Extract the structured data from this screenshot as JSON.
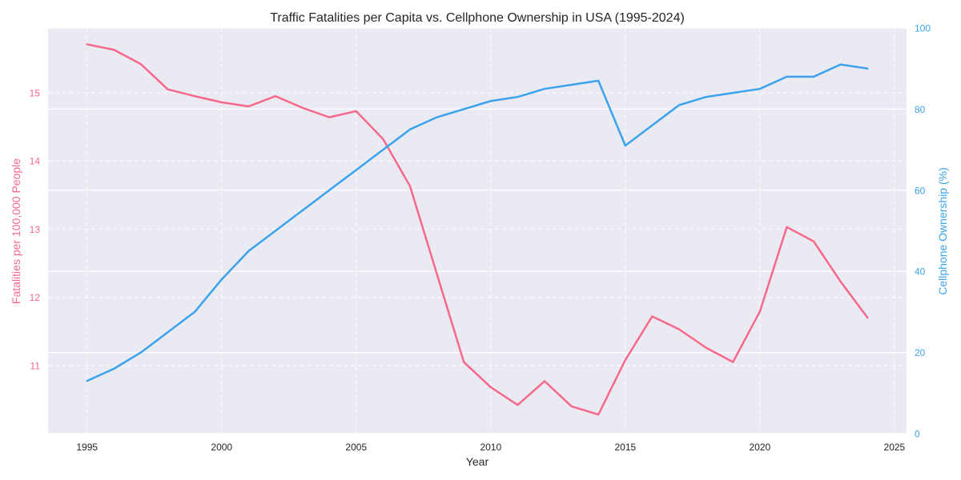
{
  "chart_data": {
    "type": "line",
    "title": "Traffic Fatalities per Capita vs. Cellphone Ownership in USA (1995-2024)",
    "xlabel": "Year",
    "ylabel_left": "Fatalities per 100,000 People",
    "ylabel_right": "Cellphone Ownership (%)",
    "x": [
      1995,
      1996,
      1997,
      1998,
      1999,
      2000,
      2001,
      2002,
      2003,
      2004,
      2005,
      2006,
      2007,
      2008,
      2009,
      2010,
      2011,
      2012,
      2013,
      2014,
      2015,
      2016,
      2017,
      2018,
      2019,
      2020,
      2021,
      2022,
      2023,
      2024
    ],
    "series": [
      {
        "axis": "left",
        "color": "#f7688a",
        "values": [
          15.71,
          15.63,
          15.42,
          15.05,
          14.95,
          14.86,
          14.8,
          14.95,
          14.78,
          14.64,
          14.73,
          14.32,
          13.63,
          12.34,
          11.05,
          10.68,
          10.42,
          10.77,
          10.4,
          10.28,
          11.08,
          11.72,
          11.53,
          11.26,
          11.05,
          11.79,
          13.03,
          12.82,
          12.23,
          11.7
        ]
      },
      {
        "axis": "right",
        "color": "#3ba3ec",
        "values": [
          13,
          16,
          20,
          25,
          30,
          38,
          45,
          50,
          55,
          60,
          65,
          70,
          75,
          78,
          80,
          82,
          83,
          85,
          86,
          87,
          71,
          76,
          81,
          83,
          84,
          85,
          88,
          88,
          91,
          90
        ]
      }
    ],
    "xlim": [
      1993.55,
      2025.45
    ],
    "ylim_left": [
      10.0,
      15.95
    ],
    "ylim_right": [
      0,
      100
    ],
    "x_ticks": [
      1995,
      2000,
      2005,
      2010,
      2015,
      2020,
      2025
    ],
    "y_ticks_left": [
      11,
      12,
      13,
      14,
      15
    ],
    "y_ticks_right": [
      0,
      20,
      40,
      60,
      80,
      100
    ],
    "grid": true,
    "colors": {
      "plot_bg": "#eaeaf2",
      "left_axis": "#f7688a",
      "right_axis": "#3ba3ec",
      "text": "#262626"
    }
  }
}
